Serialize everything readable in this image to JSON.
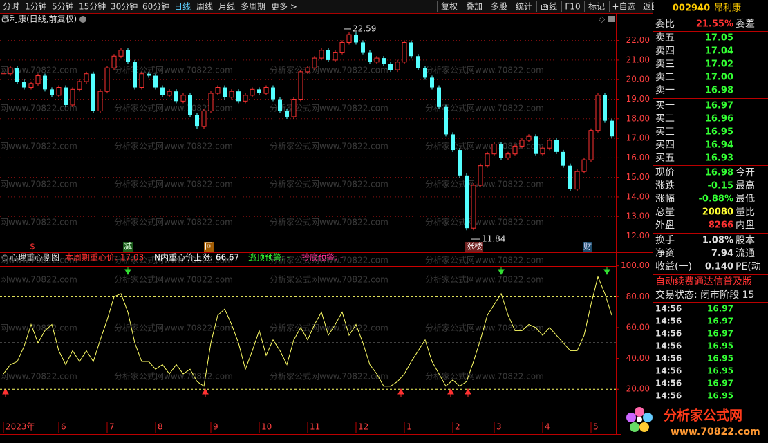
{
  "toolbar": {
    "left": [
      "分时",
      "1分钟",
      "5分钟",
      "15分钟",
      "30分钟",
      "60分钟",
      "日线",
      "周线",
      "月线",
      "多周期",
      "更多 >"
    ],
    "active": 6,
    "right": [
      "复权",
      "叠加",
      "多股",
      "统计",
      "画线",
      "F10",
      "标记",
      "+自选",
      "返回"
    ]
  },
  "price_chart": {
    "type": "candlestick",
    "title": "昂利康(日线,前复权)",
    "up_color": "#ff3232",
    "down_color": "#54ffff",
    "categories": [
      "2023年",
      null,
      null,
      null,
      null,
      null,
      null,
      null,
      "6",
      null,
      null,
      null,
      null,
      null,
      null,
      "7",
      null,
      null,
      null,
      null,
      null,
      null,
      "8",
      null,
      null,
      null,
      null,
      null,
      null,
      null,
      "9",
      null,
      null,
      null,
      null,
      null,
      null,
      "10",
      null,
      null,
      null,
      null,
      null,
      null,
      "11",
      null,
      null,
      null,
      null,
      null,
      null,
      "12",
      null,
      null,
      null,
      null,
      null,
      null,
      "1",
      null,
      null,
      null,
      null,
      null,
      null,
      "2",
      null,
      null,
      null,
      null,
      null,
      "3",
      null,
      null,
      null,
      null,
      null,
      null,
      "4",
      null,
      null,
      null,
      null,
      null,
      null,
      "5",
      null,
      null,
      null
    ],
    "closes": [
      20.3,
      20.6,
      19.9,
      19.6,
      19.8,
      20.2,
      19.5,
      19.2,
      19.6,
      18.7,
      19.5,
      19.9,
      20.3,
      18.4,
      19.4,
      20.6,
      21.2,
      21.5,
      20.9,
      19.6,
      20.3,
      20.2,
      19.6,
      19.2,
      19.4,
      18.9,
      19.2,
      18.2,
      17.6,
      18.4,
      19.3,
      19.6,
      19.1,
      19.4,
      18.9,
      19.2,
      19.5,
      19.3,
      19.6,
      19.0,
      18.4,
      18.1,
      19.0,
      20.4,
      20.6,
      21.1,
      21.5,
      21.0,
      21.4,
      21.9,
      22.3,
      21.9,
      21.4,
      20.9,
      21.1,
      20.8,
      20.5,
      20.9,
      21.9,
      21.2,
      20.6,
      20.1,
      19.6,
      18.6,
      17.2,
      16.4,
      15.1,
      12.4,
      14.6,
      15.6,
      16.2,
      16.7,
      16.0,
      16.2,
      16.6,
      16.9,
      17.1,
      16.2,
      16.5,
      16.9,
      16.3,
      15.6,
      14.4,
      15.3,
      15.9,
      17.4,
      19.2,
      17.9,
      17.1
    ],
    "ylim": [
      11.7,
      22.8
    ],
    "yticks": [
      {
        "value": 12,
        "label": "12.00"
      },
      {
        "value": 13,
        "label": "13.00"
      },
      {
        "value": 14,
        "label": "14.00"
      },
      {
        "value": 15,
        "label": "15.00"
      },
      {
        "value": 16,
        "label": "16.00"
      },
      {
        "value": 17,
        "label": "17.00"
      },
      {
        "value": 18,
        "label": "18.00"
      },
      {
        "value": 19,
        "label": "19.00"
      },
      {
        "value": 20,
        "label": "20.00"
      },
      {
        "value": 21,
        "label": "21.00"
      },
      {
        "value": 22,
        "label": "22.00"
      }
    ],
    "high": 22.59,
    "low": 11.84,
    "tags": [
      "$",
      "减",
      "回",
      "涨楼",
      "财"
    ],
    "watermark": "分析家公式网www.70822.com"
  },
  "indicator": {
    "type": "line",
    "title": "心理重心副图",
    "color": "#ffff66",
    "legend": [
      {
        "text": "本周期重心价: 17.03",
        "color": "#ff3232"
      },
      {
        "text": "N内重心价上涨: 66.67",
        "color": "#ffffff"
      },
      {
        "text": "逃顶预警: -",
        "color": "#33ff33"
      },
      {
        "text": "抄底预警: -",
        "color": "#ff3399"
      }
    ],
    "values": [
      30,
      36,
      38,
      48,
      62,
      50,
      58,
      62,
      45,
      36,
      45,
      38,
      45,
      38,
      52,
      65,
      80,
      82,
      70,
      50,
      38,
      38,
      33,
      36,
      30,
      36,
      30,
      33,
      25,
      22,
      50,
      68,
      72,
      62,
      50,
      33,
      45,
      58,
      42,
      52,
      45,
      36,
      52,
      60,
      52,
      62,
      70,
      55,
      62,
      70,
      55,
      62,
      50,
      36,
      30,
      22,
      22,
      25,
      30,
      38,
      45,
      52,
      38,
      30,
      22,
      26,
      22,
      25,
      38,
      52,
      68,
      75,
      82,
      68,
      58,
      58,
      62,
      60,
      55,
      60,
      55,
      50,
      45,
      45,
      55,
      75,
      93,
      82,
      68
    ],
    "ylim": [
      8,
      103
    ],
    "yticks": [
      {
        "value": 20,
        "label": "20.00"
      },
      {
        "value": 40,
        "label": "40.00"
      },
      {
        "value": 60,
        "label": "60.00"
      },
      {
        "value": 80,
        "label": "80.00"
      },
      {
        "value": 100,
        "label": "100.00"
      }
    ],
    "levels": [
      {
        "value": 80,
        "color": "#ffff66"
      },
      {
        "value": 50,
        "color": "#ffffff"
      },
      {
        "value": 20,
        "color": "#ffff66"
      }
    ]
  },
  "quote": {
    "code": "002940",
    "name": "昂利康",
    "rows": [
      [
        "委比",
        "21.55%",
        "委差",
        "#ff3232"
      ],
      [
        "卖五",
        "17.05",
        "",
        "#33ff33"
      ],
      [
        "卖四",
        "17.04",
        "",
        "#33ff33"
      ],
      [
        "卖三",
        "17.02",
        "",
        "#33ff33"
      ],
      [
        "卖二",
        "17.00",
        "",
        "#33ff33"
      ],
      [
        "卖一",
        "16.98",
        "",
        "#33ff33"
      ],
      [
        "买一",
        "16.97",
        "",
        "#33ff33"
      ],
      [
        "买二",
        "16.96",
        "",
        "#33ff33"
      ],
      [
        "买三",
        "16.95",
        "",
        "#33ff33"
      ],
      [
        "买四",
        "16.94",
        "",
        "#33ff33"
      ],
      [
        "买五",
        "16.93",
        "",
        "#33ff33"
      ],
      [
        "现价",
        "16.98",
        "今开",
        "#33ff33"
      ],
      [
        "涨跌",
        "-0.15",
        "最高",
        "#33ff33"
      ],
      [
        "涨幅",
        "-0.88%",
        "最低",
        "#33ff33"
      ],
      [
        "总量",
        "20080",
        "量比",
        "#ffff33"
      ],
      [
        "外盘",
        "8266",
        "内盘",
        "#ff3232"
      ],
      [
        "换手",
        "1.08%",
        "股本",
        "#e0e0e0"
      ],
      [
        "净资",
        "7.94",
        "流通",
        "#e0e0e0"
      ],
      [
        "收益(一)",
        "0.140",
        "PE(动",
        "#e0e0e0"
      ]
    ],
    "notice": "自动续费通达信普及版",
    "status": "交易状态: 闭市阶段 15",
    "ticks": [
      [
        "14:56",
        "16.97"
      ],
      [
        "14:56",
        "16.97"
      ],
      [
        "14:56",
        "16.97"
      ],
      [
        "14:56",
        "16.95"
      ],
      [
        "14:56",
        "16.95"
      ],
      [
        "14:56",
        "16.95"
      ],
      [
        "14:56",
        "16.97"
      ],
      [
        "14:56",
        "16.95"
      ]
    ]
  },
  "logo": {
    "name": "分析家公式网",
    "url": "www.70822.com"
  }
}
